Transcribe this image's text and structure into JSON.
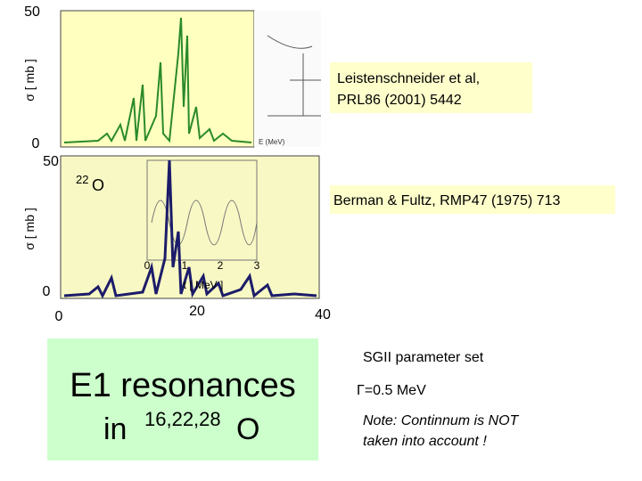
{
  "panels": [
    {
      "y_axis_label": "σ [ mb ]",
      "y_ticks": [
        "50",
        "0"
      ],
      "annotation": {
        "line1": "Leistenschneider et al,",
        "line2": "PRL86 (2001) 5442"
      }
    },
    {
      "y_axis_label": "σ [ mb ]",
      "y_ticks": [
        "50",
        "0"
      ],
      "nucleus": {
        "mass": "22",
        "symbol": "O"
      },
      "annotation": {
        "line1": "Berman & Fultz, RMP47 (1975) 713"
      },
      "inset": {
        "x_ticks": [
          "0",
          "1",
          "2",
          "3"
        ],
        "x_label": "t [ MeV ]"
      }
    }
  ],
  "x_ticks": [
    "0",
    "20",
    "40"
  ],
  "title_box": {
    "line1": "E1 resonances",
    "line2_prefix": "in",
    "masses": "16,22,28",
    "symbol": "O"
  },
  "notes": [
    "SGII parameter set",
    "Γ=0.5 MeV",
    "Note: Continnum is NOT",
    "taken into account !"
  ]
}
